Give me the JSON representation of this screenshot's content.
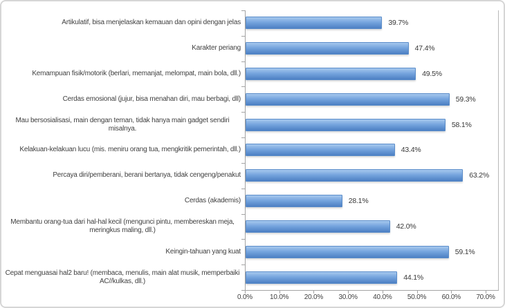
{
  "chart_data": {
    "type": "bar",
    "orientation": "horizontal",
    "title": "",
    "legend": "none",
    "grid": "off",
    "categories": [
      "Artikulatif, bisa menjelaskan kemauan dan opini dengan jelas",
      "Karakter periang",
      "Kemampuan fisik/motorik (berlari, memanjat, melompat, main bola, dll.)",
      "Cerdas emosional (jujur, bisa menahan diri, mau berbagi, dll)",
      "Mau bersosialisasi, main dengan teman, tidak hanya main gadget sendiri misalnya.",
      "Kelakuan-kelakuan lucu (mis. meniru orang tua, mengkritik pemerintah, dll.)",
      "Percaya diri/pemberani, berani bertanya, tidak cengeng/penakut",
      "Cerdas (akademis)",
      "Membantu orang-tua dari hal-hal kecil (mengunci pintu, membereskan meja, meringkus maling, dll.)",
      "Keingin-tahuan yang kuat",
      "Cepat menguasai hal2 baru! (membaca, menulis, main alat musik, memperbaiki AC//kulkas, dll.)"
    ],
    "values": [
      39.7,
      47.4,
      49.5,
      59.3,
      58.1,
      43.4,
      63.2,
      28.1,
      42.0,
      59.1,
      44.1
    ],
    "value_labels": [
      "39.7%",
      "47.4%",
      "49.5%",
      "59.3%",
      "58.1%",
      "43.4%",
      "63.2%",
      "28.1%",
      "42.0%",
      "59.1%",
      "44.1%"
    ],
    "x_axis": {
      "tick_labels": [
        "0.0%",
        "10.0%",
        "20.0%",
        "30.0%",
        "40.0%",
        "50.0%",
        "60.0%",
        "70.0%"
      ],
      "tick_values": [
        0,
        10,
        20,
        30,
        40,
        50,
        60,
        70
      ],
      "min": 0,
      "max": 70,
      "unit": "%"
    },
    "colors": {
      "bar_gradient_top": "#a6c8ee",
      "bar_gradient_mid": "#76a5de",
      "bar_gradient_bottom": "#4d80c3",
      "bar_border": "#5a8cc9",
      "axis": "#a3a3a3",
      "text": "#3f3f3f",
      "frame_border": "#d6d6d6",
      "background": "#ffffff"
    }
  }
}
